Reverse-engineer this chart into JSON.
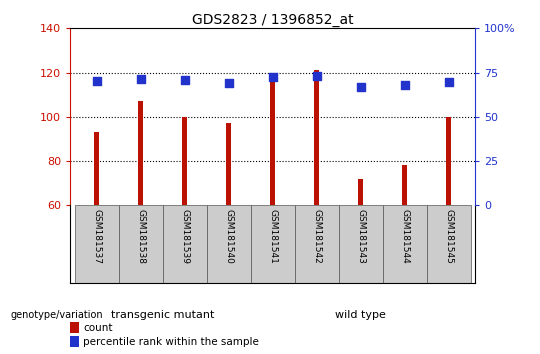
{
  "title": "GDS2823 / 1396852_at",
  "samples": [
    "GSM181537",
    "GSM181538",
    "GSM181539",
    "GSM181540",
    "GSM181541",
    "GSM181542",
    "GSM181543",
    "GSM181544",
    "GSM181545"
  ],
  "counts": [
    93,
    107,
    100,
    97,
    118,
    121,
    72,
    78,
    100
  ],
  "percentiles": [
    70,
    71.5,
    71,
    69,
    72.5,
    73,
    67,
    68,
    69.5
  ],
  "bar_color": "#bb1100",
  "dot_color": "#2233cc",
  "ylim_left": [
    60,
    140
  ],
  "ylim_right": [
    0,
    100
  ],
  "yticks_left": [
    60,
    80,
    100,
    120,
    140
  ],
  "yticks_right": [
    0,
    25,
    50,
    75,
    100
  ],
  "ytick_labels_right": [
    "0",
    "25",
    "50",
    "75",
    "100%"
  ],
  "group1_label": "transgenic mutant",
  "group2_label": "wild type",
  "group1_color": "#bbffbb",
  "group2_color": "#44ee44",
  "group1_indices": [
    0,
    1,
    2,
    3
  ],
  "group2_indices": [
    4,
    5,
    6,
    7,
    8
  ],
  "genotype_label": "genotype/variation",
  "legend_count": "count",
  "legend_percentile": "percentile rank within the sample",
  "bar_bottom": 60,
  "dot_size": 30,
  "bar_width": 0.12,
  "tick_color_left": "#cc1100",
  "tick_color_right": "#2233cc",
  "grid_dotted": [
    80,
    100,
    120
  ]
}
